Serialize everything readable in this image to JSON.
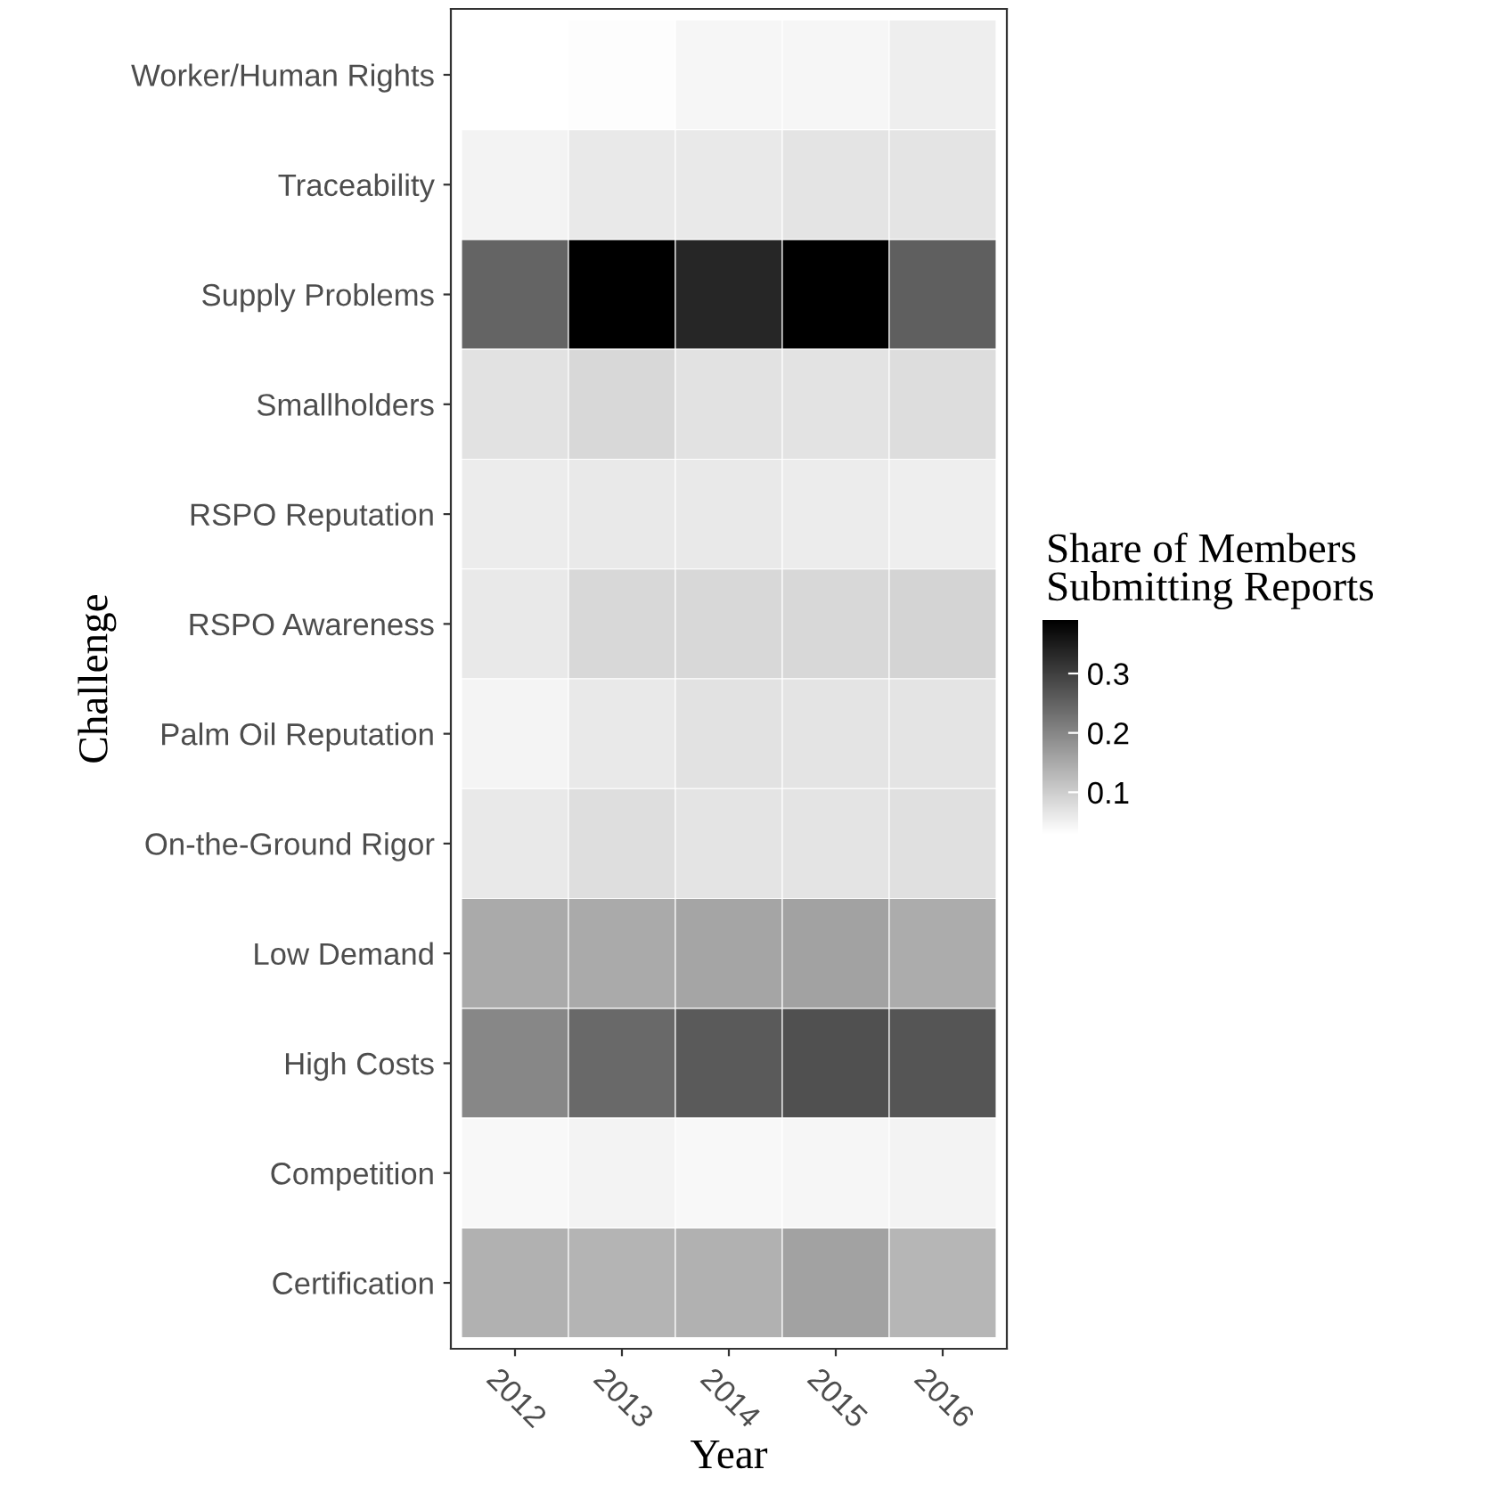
{
  "chart_data": {
    "type": "heatmap",
    "xlabel": "Year",
    "ylabel": "Challenge",
    "clabel": "Share of Members\nSubmitting Reports",
    "categories": [
      "2012",
      "2013",
      "2014",
      "2015",
      "2016"
    ],
    "y_categories": [
      "Worker/Human Rights",
      "Traceability",
      "Supply Problems",
      "Smallholders",
      "RSPO Reputation",
      "RSPO Awareness",
      "Palm Oil Reputation",
      "On-the-Ground Rigor",
      "Low Demand",
      "High Costs",
      "Competition",
      "Certification"
    ],
    "cells": [
      [
        0.03,
        0.034,
        0.044,
        0.044,
        0.055
      ],
      [
        0.048,
        0.062,
        0.062,
        0.068,
        0.068
      ],
      [
        0.249,
        0.39,
        0.336,
        0.39,
        0.256
      ],
      [
        0.072,
        0.086,
        0.072,
        0.07,
        0.079
      ],
      [
        0.058,
        0.062,
        0.062,
        0.058,
        0.054
      ],
      [
        0.062,
        0.085,
        0.085,
        0.085,
        0.091
      ],
      [
        0.046,
        0.062,
        0.071,
        0.068,
        0.068
      ],
      [
        0.062,
        0.077,
        0.068,
        0.068,
        0.074
      ],
      [
        0.15,
        0.15,
        0.157,
        0.161,
        0.147
      ],
      [
        0.199,
        0.242,
        0.263,
        0.277,
        0.27
      ],
      [
        0.04,
        0.048,
        0.041,
        0.044,
        0.048
      ],
      [
        0.14,
        0.136,
        0.14,
        0.161,
        0.133
      ]
    ],
    "clim": [
      0.03,
      0.39
    ],
    "cticks": [
      0.1,
      0.2,
      0.3
    ],
    "grid": false
  }
}
